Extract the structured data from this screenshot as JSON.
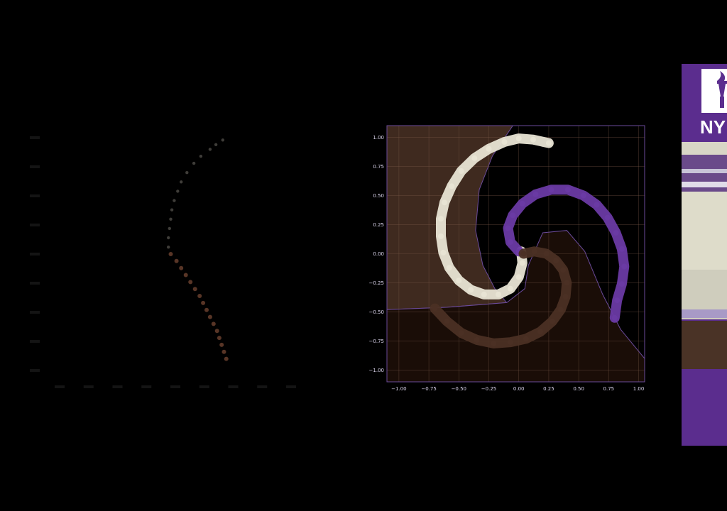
{
  "colors": {
    "background": "#000000",
    "purple": "#5b2d8e",
    "brown": "#3f2a1f",
    "cream": "#eae7d8",
    "axis": "#6a4a9a",
    "panel_light": "#d8d6c6"
  },
  "side_panel": {
    "logo_icon": "torch-icon",
    "logo_text": "NY"
  },
  "chart_data": [
    {
      "type": "scatter",
      "title": "",
      "xlabel": "",
      "ylabel": "",
      "grid": false,
      "xlim": [
        -1.0,
        1.0
      ],
      "ylim": [
        -1.0,
        1.0
      ],
      "x_ticks": [
        -1.0,
        -0.75,
        -0.5,
        -0.25,
        0.0,
        0.25,
        0.5,
        0.75,
        1.0
      ],
      "y_ticks": [
        -1.0,
        -0.75,
        -0.5,
        -0.25,
        0.0,
        0.25,
        0.5,
        0.75,
        1.0
      ],
      "series": [
        {
          "color": "#e2dccd",
          "points": [
            [
              0.41,
              0.98
            ],
            [
              0.35,
              0.94
            ],
            [
              0.3,
              0.9
            ],
            [
              0.22,
              0.84
            ],
            [
              0.16,
              0.78
            ],
            [
              0.1,
              0.7
            ],
            [
              0.05,
              0.62
            ],
            [
              0.02,
              0.54
            ],
            [
              -0.01,
              0.46
            ],
            [
              -0.03,
              0.38
            ],
            [
              -0.04,
              0.3
            ],
            [
              -0.05,
              0.22
            ],
            [
              -0.06,
              0.14
            ],
            [
              -0.06,
              0.06
            ]
          ]
        },
        {
          "color": "#7a4a35",
          "points": [
            [
              -0.04,
              0.0
            ],
            [
              0.01,
              -0.06
            ],
            [
              0.05,
              -0.12
            ],
            [
              0.09,
              -0.18
            ],
            [
              0.13,
              -0.24
            ],
            [
              0.17,
              -0.3
            ],
            [
              0.21,
              -0.36
            ],
            [
              0.24,
              -0.42
            ],
            [
              0.27,
              -0.48
            ],
            [
              0.3,
              -0.54
            ],
            [
              0.33,
              -0.6
            ],
            [
              0.36,
              -0.66
            ],
            [
              0.38,
              -0.72
            ],
            [
              0.4,
              -0.78
            ],
            [
              0.42,
              -0.84
            ],
            [
              0.44,
              -0.9
            ]
          ]
        }
      ]
    },
    {
      "type": "scatter",
      "title": "",
      "xlabel": "",
      "ylabel": "",
      "grid": true,
      "xlim": [
        -1.1,
        1.05
      ],
      "ylim": [
        -1.1,
        1.1
      ],
      "x_ticks": [
        -1.0,
        -0.75,
        -0.5,
        -0.25,
        0.0,
        0.25,
        0.5,
        0.75,
        1.0
      ],
      "y_ticks": [
        -1.0,
        -0.75,
        -0.5,
        -0.25,
        0.0,
        0.25,
        0.5,
        0.75,
        1.0
      ],
      "tick_labels": {
        "x": [
          "−1.00",
          "−0.75",
          "−0.50",
          "−0.25",
          "0.00",
          "0.25",
          "0.50",
          "0.75",
          "1.00"
        ],
        "y": [
          "−1.00",
          "−0.75",
          "−0.50",
          "−0.25",
          "0.00",
          "0.25",
          "0.50",
          "0.75",
          "1.00"
        ]
      },
      "decision_regions": [
        {
          "color": "#3f2a1f",
          "boundary": [
            [
              -1.1,
              1.1
            ],
            [
              -0.05,
              1.1
            ],
            [
              -0.22,
              0.84
            ],
            [
              -0.33,
              0.55
            ],
            [
              -0.36,
              0.2
            ],
            [
              -0.3,
              -0.1
            ],
            [
              -0.2,
              -0.3
            ],
            [
              -0.1,
              -0.42
            ],
            [
              -0.6,
              -0.46
            ],
            [
              -1.1,
              -0.48
            ]
          ]
        },
        {
          "color": "#1a0d07",
          "boundary": [
            [
              -1.1,
              -0.48
            ],
            [
              -0.6,
              -0.46
            ],
            [
              -0.1,
              -0.42
            ],
            [
              0.05,
              -0.3
            ],
            [
              0.08,
              -0.1
            ],
            [
              0.2,
              0.18
            ],
            [
              0.4,
              0.2
            ],
            [
              0.55,
              0.02
            ],
            [
              0.7,
              -0.35
            ],
            [
              0.85,
              -0.65
            ],
            [
              1.05,
              -0.9
            ],
            [
              1.05,
              -1.1
            ],
            [
              -1.1,
              -1.1
            ]
          ]
        }
      ],
      "series": [
        {
          "color": "#e8e4d4",
          "points": [
            [
              0.25,
              0.95
            ],
            [
              0.12,
              0.98
            ],
            [
              0.0,
              0.99
            ],
            [
              -0.12,
              0.96
            ],
            [
              -0.25,
              0.9
            ],
            [
              -0.37,
              0.82
            ],
            [
              -0.48,
              0.71
            ],
            [
              -0.56,
              0.58
            ],
            [
              -0.62,
              0.44
            ],
            [
              -0.65,
              0.3
            ],
            [
              -0.65,
              0.15
            ],
            [
              -0.63,
              0.01
            ],
            [
              -0.58,
              -0.12
            ],
            [
              -0.5,
              -0.23
            ],
            [
              -0.4,
              -0.31
            ],
            [
              -0.29,
              -0.35
            ],
            [
              -0.17,
              -0.35
            ],
            [
              -0.07,
              -0.3
            ],
            [
              0.0,
              -0.2
            ],
            [
              0.03,
              -0.08
            ],
            [
              0.02,
              0.02
            ]
          ]
        },
        {
          "color": "#6a3aa4",
          "points": [
            [
              0.0,
              0.02
            ],
            [
              -0.07,
              0.1
            ],
            [
              -0.09,
              0.22
            ],
            [
              -0.05,
              0.33
            ],
            [
              0.03,
              0.43
            ],
            [
              0.14,
              0.51
            ],
            [
              0.27,
              0.55
            ],
            [
              0.41,
              0.55
            ],
            [
              0.54,
              0.5
            ],
            [
              0.65,
              0.42
            ],
            [
              0.74,
              0.31
            ],
            [
              0.81,
              0.18
            ],
            [
              0.86,
              0.04
            ],
            [
              0.88,
              -0.11
            ],
            [
              0.86,
              -0.26
            ],
            [
              0.82,
              -0.4
            ],
            [
              0.8,
              -0.55
            ]
          ]
        },
        {
          "color": "#4b3024",
          "points": [
            [
              0.04,
              0.0
            ],
            [
              0.13,
              0.02
            ],
            [
              0.23,
              0.0
            ],
            [
              0.31,
              -0.06
            ],
            [
              0.37,
              -0.14
            ],
            [
              0.4,
              -0.25
            ],
            [
              0.39,
              -0.37
            ],
            [
              0.35,
              -0.48
            ],
            [
              0.28,
              -0.58
            ],
            [
              0.18,
              -0.67
            ],
            [
              0.06,
              -0.73
            ],
            [
              -0.07,
              -0.76
            ],
            [
              -0.21,
              -0.77
            ],
            [
              -0.35,
              -0.74
            ],
            [
              -0.48,
              -0.68
            ],
            [
              -0.6,
              -0.58
            ],
            [
              -0.7,
              -0.47
            ]
          ]
        }
      ]
    }
  ]
}
